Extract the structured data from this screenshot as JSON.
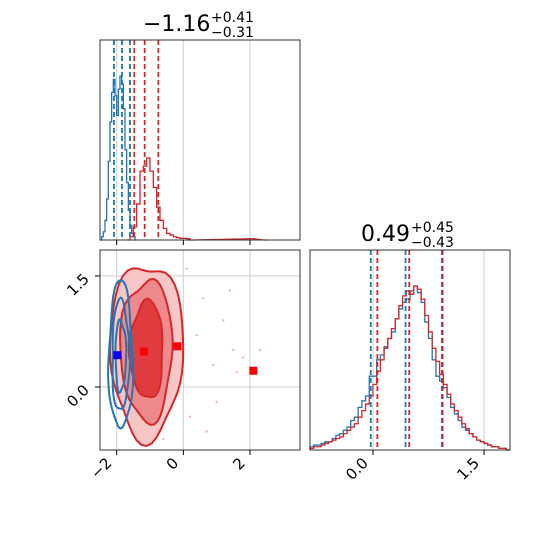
{
  "chart_data": [
    {
      "type": "histogram",
      "panel": "top-left",
      "title": {
        "main": "−1.16",
        "sup": "+0.41",
        "sub": "−0.31"
      },
      "xlim": [
        -2.5,
        3.5
      ],
      "grid": true,
      "series": [
        {
          "name": "",
          "color": "#1f77b4",
          "bins": [
            [
              -2.5,
              0
            ],
            [
              -2.45,
              0.02
            ],
            [
              -2.4,
              0.05
            ],
            [
              -2.35,
              0.12
            ],
            [
              -2.3,
              0.25
            ],
            [
              -2.25,
              0.48
            ],
            [
              -2.2,
              0.72
            ],
            [
              -2.15,
              0.9
            ],
            [
              -2.1,
              0.98
            ],
            [
              -2.05,
              0.88
            ],
            [
              -2.0,
              0.76
            ],
            [
              -1.95,
              0.92
            ],
            [
              -1.9,
              1.0
            ],
            [
              -1.85,
              0.95
            ],
            [
              -1.8,
              0.8
            ],
            [
              -1.75,
              0.55
            ],
            [
              -1.7,
              0.35
            ],
            [
              -1.65,
              0.18
            ],
            [
              -1.6,
              0.09
            ],
            [
              -1.55,
              0.04
            ],
            [
              -1.5,
              0.02
            ],
            [
              -1.45,
              0.0
            ]
          ],
          "quantile_lines": [
            -2.08,
            -1.84,
            -1.6
          ],
          "bin_width": 0.05
        },
        {
          "name": "",
          "color": "#d62728",
          "bins": [
            [
              -1.7,
              0
            ],
            [
              -1.6,
              0.02
            ],
            [
              -1.5,
              0.08
            ],
            [
              -1.4,
              0.22
            ],
            [
              -1.3,
              0.42
            ],
            [
              -1.2,
              0.45
            ],
            [
              -1.1,
              0.5
            ],
            [
              -1.0,
              0.42
            ],
            [
              -0.9,
              0.32
            ],
            [
              -0.8,
              0.2
            ],
            [
              -0.7,
              0.12
            ],
            [
              -0.6,
              0.07
            ],
            [
              -0.5,
              0.04
            ],
            [
              -0.4,
              0.03
            ],
            [
              -0.3,
              0.02
            ],
            [
              -0.2,
              0.015
            ],
            [
              -0.1,
              0.01
            ],
            [
              0.0,
              0.01
            ],
            [
              0.1,
              0.008
            ],
            [
              0.2,
              0.0
            ],
            [
              1.6,
              0.006
            ],
            [
              2.0,
              0.008
            ],
            [
              2.4,
              0.0
            ]
          ],
          "quantile_lines": [
            -1.47,
            -1.16,
            -0.75
          ],
          "bin_width": 0.1
        }
      ],
      "x_ticks": [
        -2,
        0,
        2
      ],
      "x_tick_labels": [
        "",
        "",
        ""
      ]
    },
    {
      "type": "histogram",
      "panel": "bottom-right",
      "title": {
        "main": "0.49",
        "sup": "+0.45",
        "sub": "−0.43"
      },
      "xlim": [
        -0.85,
        1.85
      ],
      "grid": true,
      "series": [
        {
          "name": "",
          "color": "#1f77b4",
          "bins": [
            [
              -0.85,
              0.02
            ],
            [
              -0.8,
              0.03
            ],
            [
              -0.75,
              0.03
            ],
            [
              -0.7,
              0.04
            ],
            [
              -0.65,
              0.05
            ],
            [
              -0.6,
              0.05
            ],
            [
              -0.55,
              0.07
            ],
            [
              -0.5,
              0.09
            ],
            [
              -0.45,
              0.1
            ],
            [
              -0.4,
              0.12
            ],
            [
              -0.35,
              0.14
            ],
            [
              -0.3,
              0.18
            ],
            [
              -0.25,
              0.2
            ],
            [
              -0.2,
              0.26
            ],
            [
              -0.15,
              0.3
            ],
            [
              -0.1,
              0.33
            ],
            [
              -0.05,
              0.45
            ],
            [
              0.0,
              0.45
            ],
            [
              0.05,
              0.55
            ],
            [
              0.1,
              0.58
            ],
            [
              0.15,
              0.63
            ],
            [
              0.2,
              0.68
            ],
            [
              0.25,
              0.72
            ],
            [
              0.3,
              0.8
            ],
            [
              0.35,
              0.86
            ],
            [
              0.4,
              0.9
            ],
            [
              0.45,
              0.92
            ],
            [
              0.5,
              0.97
            ],
            [
              0.55,
              1.0
            ],
            [
              0.6,
              0.96
            ],
            [
              0.65,
              0.9
            ],
            [
              0.7,
              0.78
            ],
            [
              0.75,
              0.68
            ],
            [
              0.8,
              0.55
            ],
            [
              0.85,
              0.45
            ],
            [
              0.9,
              0.42
            ],
            [
              0.95,
              0.38
            ],
            [
              1.0,
              0.32
            ],
            [
              1.05,
              0.26
            ],
            [
              1.1,
              0.22
            ],
            [
              1.15,
              0.18
            ],
            [
              1.2,
              0.14
            ],
            [
              1.25,
              0.12
            ],
            [
              1.3,
              0.1
            ],
            [
              1.35,
              0.08
            ],
            [
              1.4,
              0.06
            ],
            [
              1.45,
              0.05
            ],
            [
              1.5,
              0.04
            ],
            [
              1.55,
              0.03
            ],
            [
              1.6,
              0.02
            ],
            [
              1.65,
              0.02
            ],
            [
              1.7,
              0.01
            ],
            [
              1.75,
              0.01
            ],
            [
              1.8,
              0.0
            ]
          ],
          "quantile_lines": [
            -0.03,
            0.44,
            0.93
          ],
          "bin_width": 0.05
        },
        {
          "name": "",
          "color": "#d62728",
          "bins": [
            [
              -0.85,
              0.01
            ],
            [
              -0.8,
              0.02
            ],
            [
              -0.75,
              0.02
            ],
            [
              -0.7,
              0.03
            ],
            [
              -0.65,
              0.04
            ],
            [
              -0.6,
              0.05
            ],
            [
              -0.55,
              0.06
            ],
            [
              -0.5,
              0.07
            ],
            [
              -0.45,
              0.08
            ],
            [
              -0.4,
              0.1
            ],
            [
              -0.35,
              0.12
            ],
            [
              -0.3,
              0.14
            ],
            [
              -0.25,
              0.16
            ],
            [
              -0.2,
              0.2
            ],
            [
              -0.15,
              0.24
            ],
            [
              -0.1,
              0.28
            ],
            [
              -0.05,
              0.33
            ],
            [
              0.0,
              0.4
            ],
            [
              0.05,
              0.48
            ],
            [
              0.1,
              0.55
            ],
            [
              0.15,
              0.62
            ],
            [
              0.2,
              0.68
            ],
            [
              0.25,
              0.74
            ],
            [
              0.3,
              0.8
            ],
            [
              0.35,
              0.88
            ],
            [
              0.4,
              0.94
            ],
            [
              0.45,
              0.97
            ],
            [
              0.5,
              0.95
            ],
            [
              0.55,
              1.0
            ],
            [
              0.6,
              0.98
            ],
            [
              0.65,
              0.92
            ],
            [
              0.7,
              0.82
            ],
            [
              0.75,
              0.72
            ],
            [
              0.8,
              0.62
            ],
            [
              0.85,
              0.54
            ],
            [
              0.9,
              0.46
            ],
            [
              0.95,
              0.4
            ],
            [
              1.0,
              0.34
            ],
            [
              1.05,
              0.28
            ],
            [
              1.1,
              0.24
            ],
            [
              1.15,
              0.2
            ],
            [
              1.2,
              0.16
            ],
            [
              1.25,
              0.13
            ],
            [
              1.3,
              0.1
            ],
            [
              1.35,
              0.08
            ],
            [
              1.4,
              0.06
            ],
            [
              1.45,
              0.05
            ],
            [
              1.5,
              0.04
            ],
            [
              1.55,
              0.03
            ],
            [
              1.6,
              0.02
            ],
            [
              1.65,
              0.02
            ],
            [
              1.7,
              0.01
            ],
            [
              1.75,
              0.01
            ],
            [
              1.8,
              0.0
            ]
          ],
          "quantile_lines": [
            0.06,
            0.49,
            0.94
          ],
          "bin_width": 0.05
        }
      ],
      "x_ticks": [
        0.0,
        1.5
      ],
      "x_tick_labels": [
        "0.0",
        "1.5"
      ]
    },
    {
      "type": "contour",
      "panel": "bottom-left",
      "xlim": [
        -2.5,
        3.5
      ],
      "ylim": [
        -0.85,
        1.85
      ],
      "grid": true,
      "x_ticks": [
        -2,
        0,
        2
      ],
      "x_tick_labels": [
        "−2",
        "0",
        "2"
      ],
      "y_ticks": [
        0.0,
        1.5
      ],
      "y_tick_labels": [
        "0.0",
        "1.5"
      ],
      "series": [
        {
          "name": "",
          "color": "#1f77b4",
          "center": [
            -1.88,
            0.42
          ],
          "levels": [
            {
              "rx": 0.36,
              "ry": 1.0
            },
            {
              "rx": 0.26,
              "ry": 0.75
            },
            {
              "rx": 0.16,
              "ry": 0.48
            }
          ],
          "marker": {
            "x": -1.98,
            "y": 0.43,
            "color": "#0000ff"
          }
        },
        {
          "name": "",
          "color": "#d62728",
          "center": [
            -1.1,
            0.5
          ],
          "levels": [
            {
              "rx": 1.1,
              "ry": 1.18,
              "fill": "#f7c6c7"
            },
            {
              "rx": 0.78,
              "ry": 0.95,
              "fill": "#ee8a8c"
            },
            {
              "rx": 0.5,
              "ry": 0.66,
              "fill": "#e03c3f"
            }
          ],
          "marker": {
            "x": -1.18,
            "y": 0.48,
            "color": "#ff0000"
          }
        }
      ],
      "extra_markers": [
        {
          "x": -0.18,
          "y": 0.55,
          "color": "#ff0000"
        },
        {
          "x": 2.1,
          "y": 0.22,
          "color": "#ff0000"
        }
      ],
      "scatter": [
        [
          0.6,
          1.2
        ],
        [
          1.2,
          0.9
        ],
        [
          0.9,
          0.3
        ],
        [
          1.6,
          0.2
        ],
        [
          1.8,
          0.4
        ],
        [
          -0.3,
          1.4
        ],
        [
          0.2,
          -0.4
        ],
        [
          1.0,
          -0.2
        ],
        [
          -0.6,
          -0.7
        ],
        [
          0.4,
          0.7
        ],
        [
          1.4,
          1.3
        ],
        [
          0.7,
          -0.6
        ],
        [
          2.3,
          0.5
        ],
        [
          1.5,
          0.5
        ],
        [
          0.1,
          1.6
        ]
      ]
    }
  ]
}
